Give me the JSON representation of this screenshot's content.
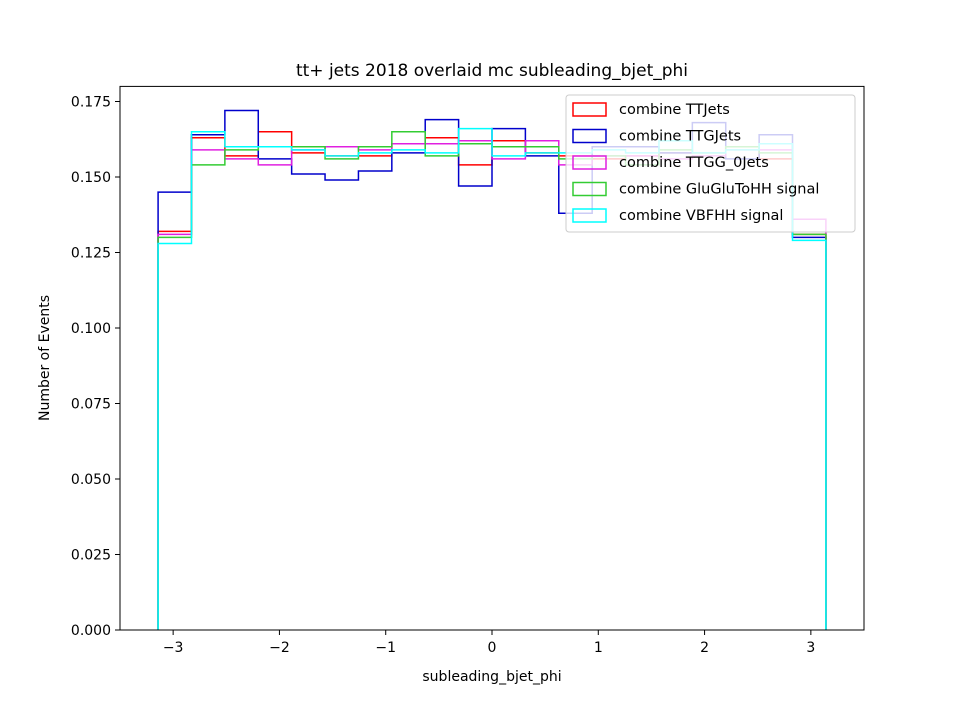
{
  "chart_data": {
    "type": "step-histogram",
    "title": "tt+ jets 2018 overlaid mc subleading_bjet_phi",
    "xlabel": "subleading_bjet_phi",
    "ylabel": "Number of Events",
    "xlim": [
      -3.5,
      3.5
    ],
    "ylim": [
      0.0,
      0.18
    ],
    "x_ticks": [
      -3,
      -2,
      -1,
      0,
      1,
      2,
      3
    ],
    "x_tick_labels": [
      "−3",
      "−2",
      "−1",
      "0",
      "1",
      "2",
      "3"
    ],
    "y_ticks": [
      0.0,
      0.025,
      0.05,
      0.075,
      0.1,
      0.125,
      0.15,
      0.175
    ],
    "y_tick_labels": [
      "0.000",
      "0.025",
      "0.050",
      "0.075",
      "0.100",
      "0.125",
      "0.150",
      "0.175"
    ],
    "grid": false,
    "legend_position": "top-right",
    "bin_edges": [
      -3.1416,
      -2.8274,
      -2.5133,
      -2.1991,
      -1.885,
      -1.5708,
      -1.2566,
      -0.9425,
      -0.6283,
      -0.3142,
      0.0,
      0.3142,
      0.6283,
      0.9425,
      1.2566,
      1.5708,
      1.885,
      2.1991,
      2.5133,
      2.8274,
      3.1416
    ],
    "series": [
      {
        "name": "combine TTJets",
        "color": "#ff0000",
        "values": [
          0.132,
          0.163,
          0.157,
          0.165,
          0.158,
          0.157,
          0.157,
          0.161,
          0.163,
          0.154,
          0.162,
          0.158,
          0.157,
          0.156,
          0.157,
          0.158,
          0.158,
          0.16,
          0.156,
          0.131
        ]
      },
      {
        "name": "combine TTGJets",
        "color": "#0000cc",
        "values": [
          0.145,
          0.164,
          0.172,
          0.156,
          0.151,
          0.149,
          0.152,
          0.158,
          0.169,
          0.147,
          0.166,
          0.157,
          0.138,
          0.16,
          0.16,
          0.158,
          0.168,
          0.156,
          0.164,
          0.13
        ]
      },
      {
        "name": "combine TTGG_0Jets",
        "color": "#e020e0",
        "values": [
          0.131,
          0.159,
          0.156,
          0.154,
          0.159,
          0.16,
          0.159,
          0.161,
          0.161,
          0.162,
          0.156,
          0.162,
          0.154,
          0.157,
          0.157,
          0.156,
          0.157,
          0.159,
          0.159,
          0.136
        ]
      },
      {
        "name": "combine GluGluToHH signal",
        "color": "#33cc33",
        "values": [
          0.13,
          0.154,
          0.159,
          0.16,
          0.16,
          0.156,
          0.16,
          0.165,
          0.157,
          0.161,
          0.16,
          0.16,
          0.156,
          0.157,
          0.154,
          0.159,
          0.158,
          0.16,
          0.158,
          0.131
        ]
      },
      {
        "name": "combine VBFHH signal",
        "color": "#00ffff",
        "values": [
          0.128,
          0.165,
          0.16,
          0.16,
          0.159,
          0.157,
          0.158,
          0.159,
          0.158,
          0.166,
          0.157,
          0.158,
          0.158,
          0.159,
          0.158,
          0.162,
          0.158,
          0.159,
          0.161,
          0.129
        ]
      }
    ]
  }
}
